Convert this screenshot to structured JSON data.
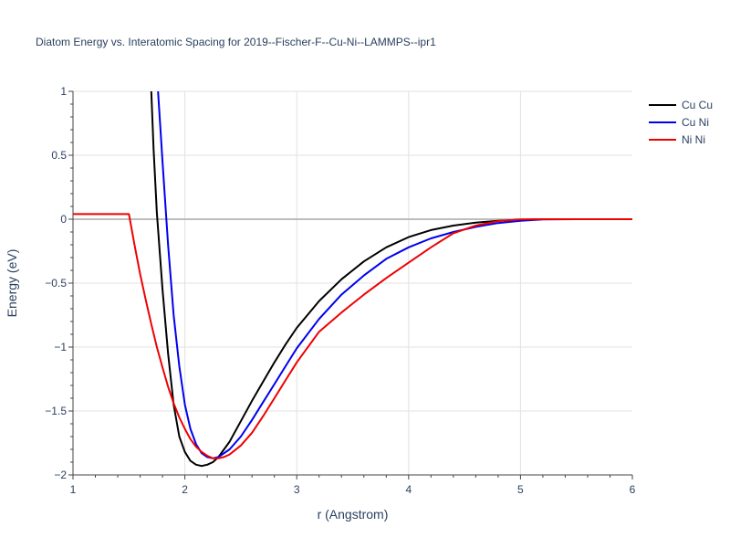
{
  "chart_data": {
    "type": "line",
    "title": "Diatom Energy vs. Interatomic Spacing for 2019--Fischer-F--Cu-Ni--LAMMPS--ipr1",
    "xlabel": "r (Angstrom)",
    "ylabel": "Energy (eV)",
    "xlim": [
      1,
      6
    ],
    "ylim": [
      -2,
      1
    ],
    "x_ticks": [
      "1",
      "2",
      "3",
      "4",
      "5",
      "6"
    ],
    "y_ticks": [
      "−2",
      "−1.5",
      "−1",
      "−0.5",
      "0",
      "0.5",
      "1"
    ],
    "grid": true,
    "legend_position": "top-right",
    "series": [
      {
        "name": "Cu Cu",
        "color": "#000000",
        "points": [
          [
            1.7,
            1.0
          ],
          [
            1.72,
            0.55
          ],
          [
            1.75,
            0.05
          ],
          [
            1.8,
            -0.55
          ],
          [
            1.85,
            -1.05
          ],
          [
            1.9,
            -1.45
          ],
          [
            1.95,
            -1.7
          ],
          [
            2.0,
            -1.82
          ],
          [
            2.05,
            -1.89
          ],
          [
            2.1,
            -1.92
          ],
          [
            2.15,
            -1.93
          ],
          [
            2.2,
            -1.92
          ],
          [
            2.25,
            -1.9
          ],
          [
            2.3,
            -1.86
          ],
          [
            2.4,
            -1.74
          ],
          [
            2.5,
            -1.58
          ],
          [
            2.6,
            -1.42
          ],
          [
            2.7,
            -1.27
          ],
          [
            2.8,
            -1.12
          ],
          [
            2.9,
            -0.98
          ],
          [
            3.0,
            -0.85
          ],
          [
            3.2,
            -0.64
          ],
          [
            3.4,
            -0.47
          ],
          [
            3.6,
            -0.33
          ],
          [
            3.8,
            -0.22
          ],
          [
            4.0,
            -0.14
          ],
          [
            4.2,
            -0.085
          ],
          [
            4.4,
            -0.05
          ],
          [
            4.6,
            -0.027
          ],
          [
            4.8,
            -0.012
          ],
          [
            5.0,
            -0.004
          ],
          [
            5.2,
            0.0
          ],
          [
            5.5,
            0.0
          ],
          [
            6.0,
            0.0
          ]
        ]
      },
      {
        "name": "Cu Ni",
        "color": "#0000ee",
        "points": [
          [
            1.76,
            1.0
          ],
          [
            1.8,
            0.45
          ],
          [
            1.85,
            -0.2
          ],
          [
            1.9,
            -0.75
          ],
          [
            1.95,
            -1.15
          ],
          [
            2.0,
            -1.45
          ],
          [
            2.05,
            -1.64
          ],
          [
            2.1,
            -1.76
          ],
          [
            2.15,
            -1.83
          ],
          [
            2.2,
            -1.86
          ],
          [
            2.25,
            -1.87
          ],
          [
            2.3,
            -1.86
          ],
          [
            2.4,
            -1.8
          ],
          [
            2.5,
            -1.7
          ],
          [
            2.6,
            -1.57
          ],
          [
            2.7,
            -1.43
          ],
          [
            2.8,
            -1.29
          ],
          [
            2.9,
            -1.15
          ],
          [
            3.0,
            -1.01
          ],
          [
            3.2,
            -0.78
          ],
          [
            3.4,
            -0.59
          ],
          [
            3.6,
            -0.44
          ],
          [
            3.8,
            -0.31
          ],
          [
            4.0,
            -0.22
          ],
          [
            4.2,
            -0.15
          ],
          [
            4.4,
            -0.1
          ],
          [
            4.6,
            -0.06
          ],
          [
            4.8,
            -0.03
          ],
          [
            5.0,
            -0.012
          ],
          [
            5.2,
            -0.002
          ],
          [
            5.5,
            0.0
          ],
          [
            6.0,
            0.0
          ]
        ]
      },
      {
        "name": "Ni Ni",
        "color": "#ee0000",
        "points": [
          [
            1.0,
            0.04
          ],
          [
            1.3,
            0.04
          ],
          [
            1.5,
            0.04
          ],
          [
            1.55,
            -0.2
          ],
          [
            1.6,
            -0.43
          ],
          [
            1.65,
            -0.63
          ],
          [
            1.7,
            -0.82
          ],
          [
            1.75,
            -1.0
          ],
          [
            1.8,
            -1.16
          ],
          [
            1.85,
            -1.31
          ],
          [
            1.9,
            -1.44
          ],
          [
            1.95,
            -1.55
          ],
          [
            2.0,
            -1.64
          ],
          [
            2.05,
            -1.72
          ],
          [
            2.1,
            -1.78
          ],
          [
            2.15,
            -1.82
          ],
          [
            2.2,
            -1.85
          ],
          [
            2.25,
            -1.87
          ],
          [
            2.3,
            -1.87
          ],
          [
            2.35,
            -1.86
          ],
          [
            2.4,
            -1.84
          ],
          [
            2.5,
            -1.77
          ],
          [
            2.6,
            -1.67
          ],
          [
            2.7,
            -1.54
          ],
          [
            2.8,
            -1.4
          ],
          [
            2.9,
            -1.26
          ],
          [
            3.0,
            -1.12
          ],
          [
            3.2,
            -0.88
          ],
          [
            3.4,
            -0.73
          ],
          [
            3.6,
            -0.59
          ],
          [
            3.8,
            -0.46
          ],
          [
            4.0,
            -0.34
          ],
          [
            4.2,
            -0.22
          ],
          [
            4.4,
            -0.11
          ],
          [
            4.6,
            -0.05
          ],
          [
            4.8,
            -0.015
          ],
          [
            5.0,
            -0.002
          ],
          [
            5.2,
            0.0
          ],
          [
            6.0,
            0.0
          ]
        ]
      }
    ]
  }
}
